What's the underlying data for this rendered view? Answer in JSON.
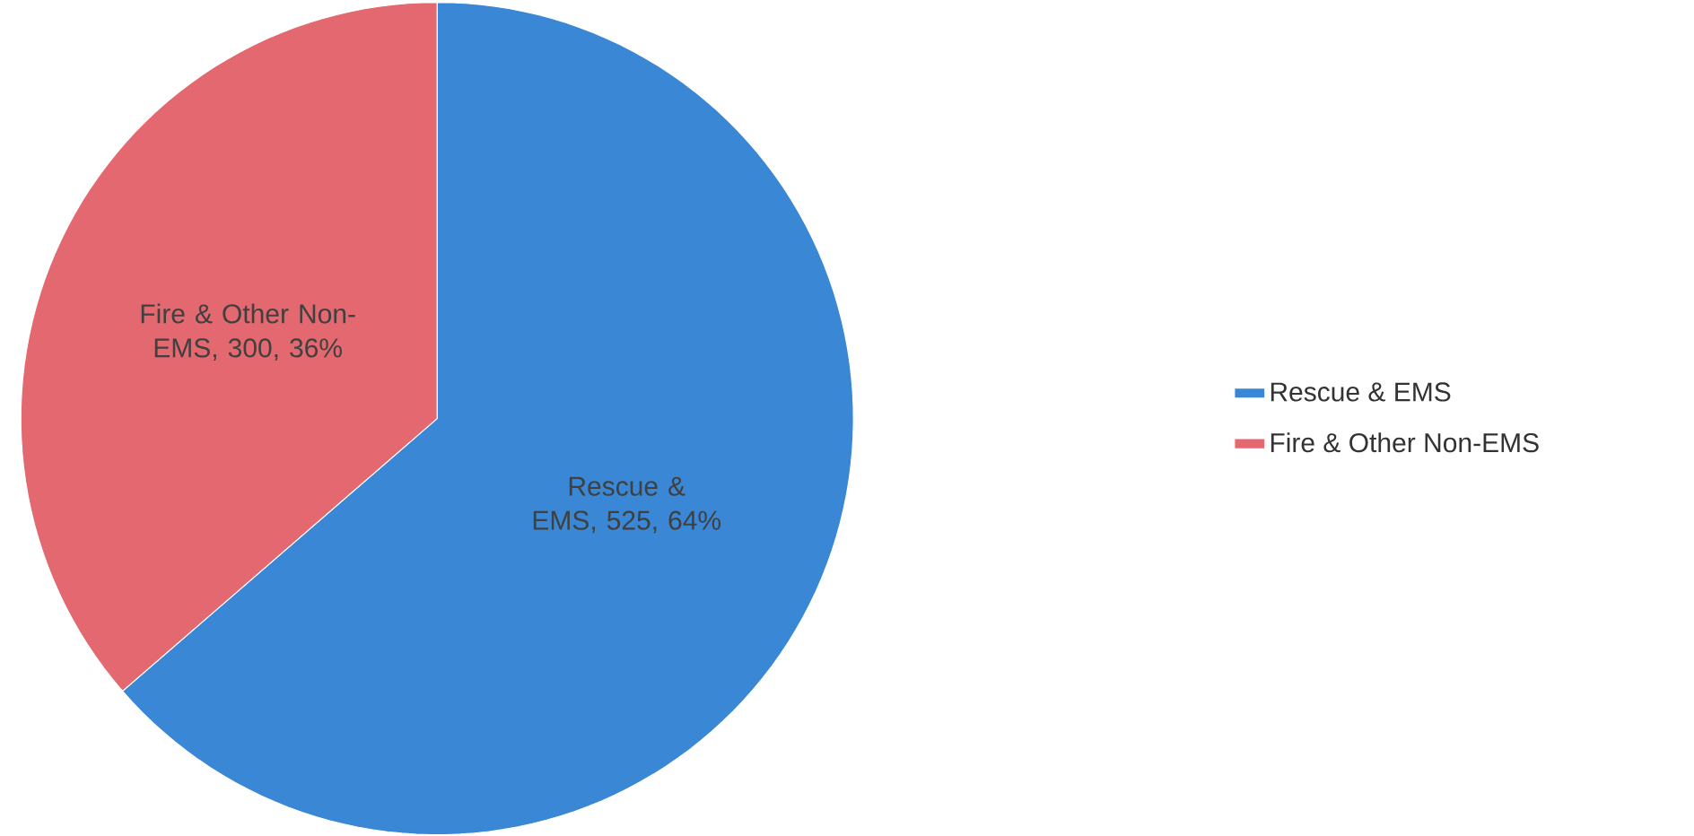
{
  "chart_data": {
    "type": "pie",
    "categories": [
      "Rescue & EMS",
      "Fire & Other Non-EMS"
    ],
    "values": [
      525,
      300
    ],
    "colors": [
      "#3a87d5",
      "#e4686f"
    ],
    "value_labels": [
      "Rescue & EMS, 525, 64%",
      "Fire & Other Non-EMS, 300, 36%"
    ],
    "legend": "right"
  }
}
